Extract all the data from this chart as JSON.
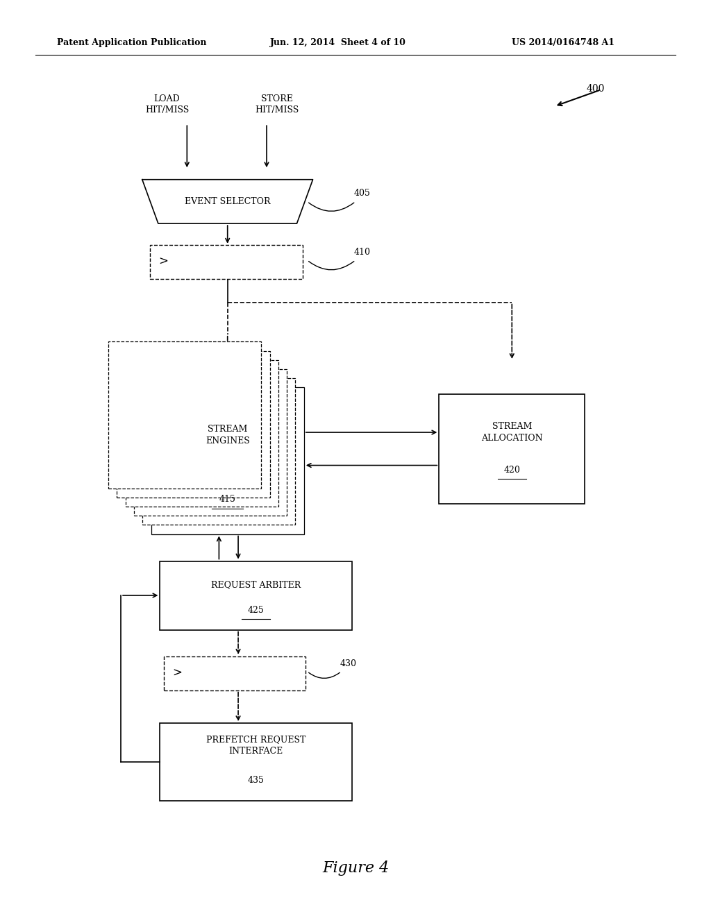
{
  "bg_color": "#ffffff",
  "header_text": "Patent Application Publication",
  "header_date": "Jun. 12, 2014  Sheet 4 of 10",
  "header_patent": "US 2014/0164748 A1",
  "figure_label": "Figure 4",
  "diagram_number": "400"
}
